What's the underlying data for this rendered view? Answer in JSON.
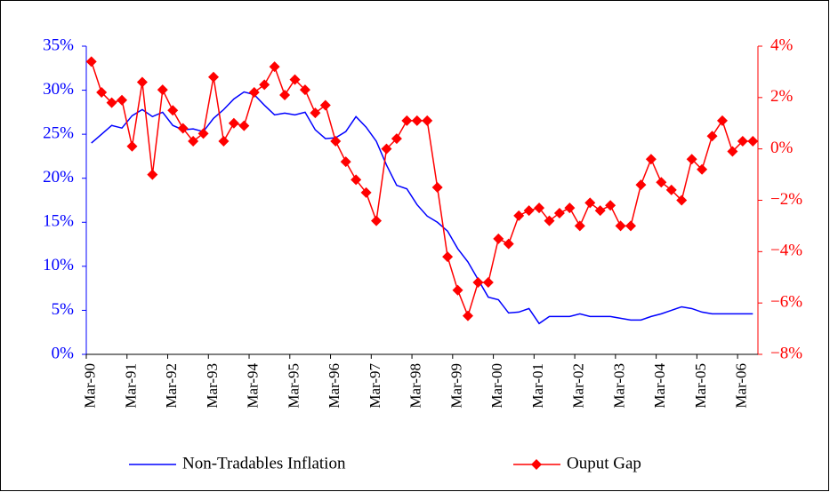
{
  "chart_data": {
    "type": "line",
    "categories": [
      "Mar-90",
      null,
      null,
      null,
      "Mar-91",
      null,
      null,
      null,
      "Mar-92",
      null,
      null,
      null,
      "Mar-93",
      null,
      null,
      null,
      "Mar-94",
      null,
      null,
      null,
      "Mar-95",
      null,
      null,
      null,
      "Mar-96",
      null,
      null,
      null,
      "Mar-97",
      null,
      null,
      null,
      "Mar-98",
      null,
      null,
      null,
      "Mar-99",
      null,
      null,
      null,
      "Mar-00",
      null,
      null,
      null,
      "Mar-01",
      null,
      null,
      null,
      "Mar-02",
      null,
      null,
      null,
      "Mar-03",
      null,
      null,
      null,
      "Mar-04",
      null,
      null,
      null,
      "Mar-05",
      null,
      null,
      null,
      "Mar-06",
      null
    ],
    "series": [
      {
        "name": "Non-Tradables Inflation",
        "color": "#0000ff",
        "axis": "y",
        "values": [
          24,
          25,
          26,
          25.7,
          27.1,
          27.8,
          27,
          27.5,
          26,
          25.5,
          25.6,
          25.3,
          26.8,
          27.8,
          29,
          29.8,
          29.5,
          28.3,
          27.2,
          27.4,
          27.2,
          27.5,
          25.5,
          24.5,
          24.6,
          25.3,
          27,
          25.8,
          24.2,
          21.5,
          19.2,
          18.8,
          17,
          15.7,
          15,
          14,
          12,
          10.5,
          8.5,
          6.5,
          6.2,
          4.7,
          4.8,
          5.2,
          3.5,
          4.3,
          4.3,
          4.3,
          4.6,
          4.3,
          4.3,
          4.3,
          4.1,
          3.9,
          3.9,
          4.3,
          4.6,
          5.0,
          5.4,
          5.2,
          4.8,
          4.6,
          4.6,
          4.6,
          4.6,
          4.6
        ]
      },
      {
        "name": "Ouput Gap",
        "color": "#ff0000",
        "axis": "y2",
        "marker": "diamond",
        "values": [
          3.4,
          2.2,
          1.8,
          1.9,
          0.1,
          2.6,
          -1.0,
          2.3,
          1.5,
          0.8,
          0.3,
          0.6,
          2.8,
          0.3,
          1.0,
          0.9,
          2.2,
          2.5,
          3.2,
          2.1,
          2.7,
          2.3,
          1.4,
          1.7,
          0.3,
          -0.5,
          -1.2,
          -1.7,
          -2.8,
          0.0,
          0.4,
          1.1,
          1.1,
          1.1,
          -1.5,
          -4.2,
          -5.5,
          -6.5,
          -5.2,
          -5.2,
          -3.5,
          -3.7,
          -2.6,
          -2.4,
          -2.3,
          -2.8,
          -2.5,
          -2.3,
          -3.0,
          -2.1,
          -2.4,
          -2.2,
          -3.0,
          -3.0,
          -1.4,
          -0.4,
          -1.3,
          -1.6,
          -2.0,
          -0.4,
          -0.8,
          0.5,
          1.1,
          -0.1,
          0.3,
          0.3
        ]
      }
    ],
    "ylim": [
      0,
      35
    ],
    "yticks": [
      {
        "value": 0,
        "label": "0%"
      },
      {
        "value": 5,
        "label": "5%"
      },
      {
        "value": 10,
        "label": "10%"
      },
      {
        "value": 15,
        "label": "15%"
      },
      {
        "value": 20,
        "label": "20%"
      },
      {
        "value": 25,
        "label": "25%"
      },
      {
        "value": 30,
        "label": "30%"
      },
      {
        "value": 35,
        "label": "35%"
      }
    ],
    "y2lim": [
      -8,
      4
    ],
    "y2ticks": [
      {
        "value": -8,
        "label": "−8%"
      },
      {
        "value": -6,
        "label": "−6%"
      },
      {
        "value": -4,
        "label": "−4%"
      },
      {
        "value": -2,
        "label": "−2%"
      },
      {
        "value": 0,
        "label": "0%"
      },
      {
        "value": 2,
        "label": "2%"
      },
      {
        "value": 4,
        "label": "4%"
      }
    ],
    "grid": false,
    "legend": "bottom"
  }
}
